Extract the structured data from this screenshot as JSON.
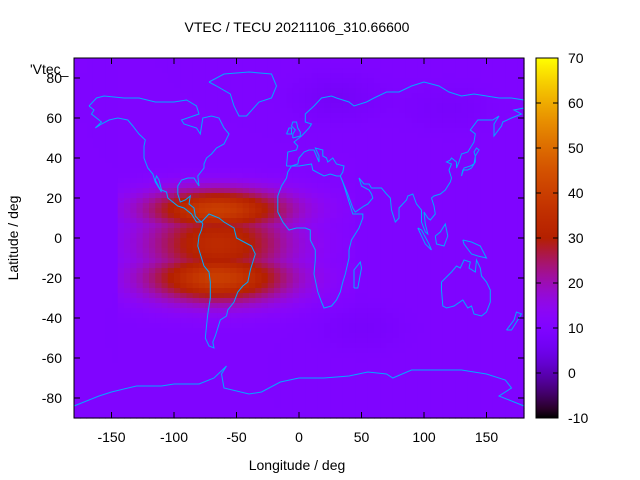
{
  "chart_data": {
    "type": "heatmap",
    "title": "VTEC / TECU 20211106_310.66600",
    "xlabel": "Longitude / deg",
    "ylabel": "Latitude / deg",
    "series_label": "'Vtec_",
    "xlim": [
      -180,
      180
    ],
    "ylim": [
      -90,
      90
    ],
    "xticks": [
      "-150",
      "-100",
      "-50",
      "0",
      "50",
      "100",
      "150"
    ],
    "xtick_values": [
      -150,
      -100,
      -50,
      0,
      50,
      100,
      150
    ],
    "yticks": [
      "80",
      "60",
      "40",
      "20",
      "0",
      "-20",
      "-40",
      "-60",
      "-80"
    ],
    "ytick_values": [
      80,
      60,
      40,
      20,
      0,
      -20,
      -40,
      -60,
      -80
    ],
    "colorbar": {
      "range": [
        -10,
        70
      ],
      "ticks": [
        "70",
        "60",
        "50",
        "40",
        "30",
        "20",
        "10",
        "0",
        "-10"
      ],
      "tick_values": [
        70,
        60,
        50,
        40,
        30,
        20,
        10,
        0,
        -10
      ]
    },
    "field": {
      "background_tecu": 10,
      "crest_center_lon": -65,
      "crest_peak_tecu": 40,
      "crest_north_lat": 14,
      "crest_south_lat": -20,
      "crest_lon_halfwidth": 60,
      "crest_lon_extent": [
        -145,
        45
      ],
      "low_tecu_regions": [
        {
          "lon": 30,
          "lat": 70,
          "tecu": 7
        },
        {
          "lon": 120,
          "lat": 65,
          "tecu": 8
        },
        {
          "lon": 50,
          "lat": -45,
          "tecu": 8
        }
      ]
    },
    "colors": {
      "background": "#7f00ff",
      "coastline": "#00aaff"
    }
  }
}
